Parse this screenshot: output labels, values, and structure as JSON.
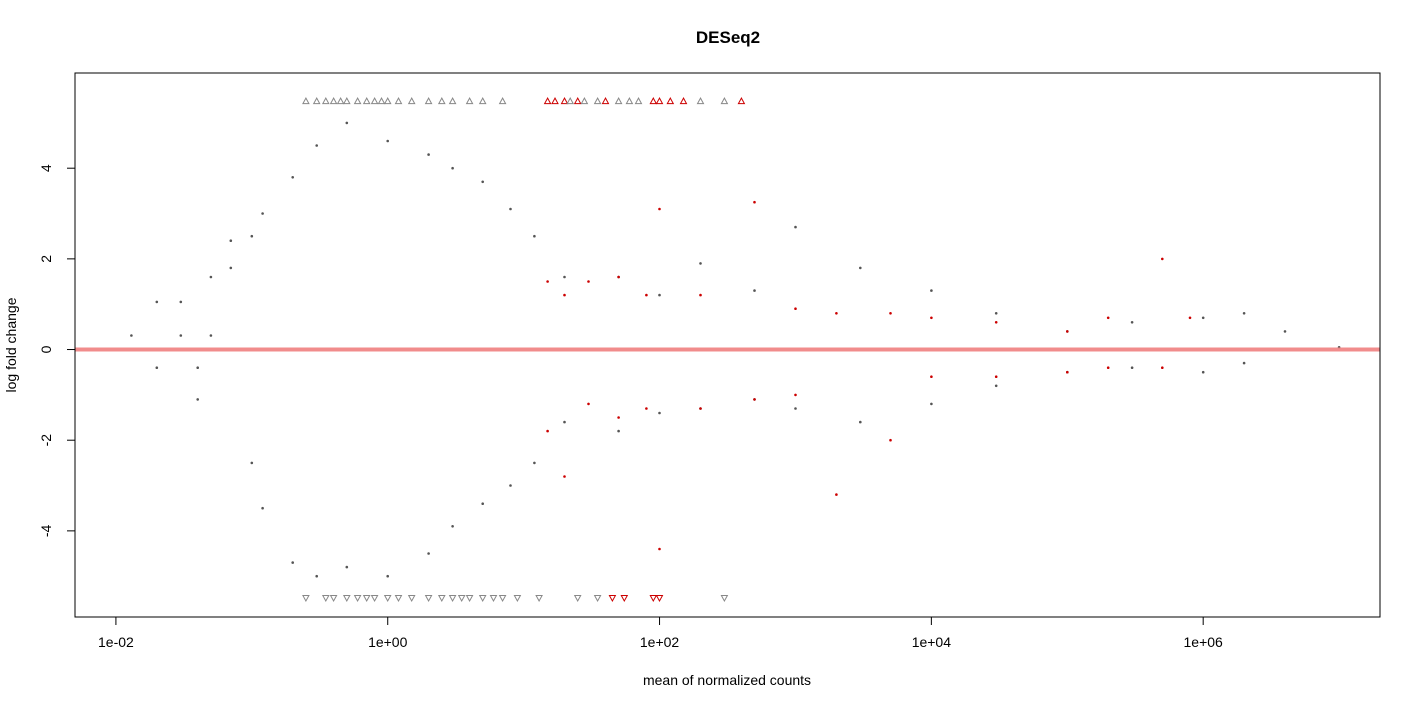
{
  "chart_data": {
    "type": "scatter",
    "title": "DESeq2",
    "xlabel": "mean of normalized counts",
    "ylabel": "log fold change",
    "x_scale": "log",
    "xlim": [
      0.005,
      20000000
    ],
    "ylim": [
      -5.9,
      6.1
    ],
    "x_ticks": [
      {
        "value": 0.01,
        "label": "1e-02"
      },
      {
        "value": 1,
        "label": "1e+00"
      },
      {
        "value": 100,
        "label": "1e+02"
      },
      {
        "value": 10000,
        "label": "1e+04"
      },
      {
        "value": 1000000,
        "label": "1e+06"
      }
    ],
    "y_ticks": [
      -4,
      -2,
      0,
      2,
      4
    ],
    "grid": false,
    "legend": "none",
    "reference_line": {
      "y": 0,
      "color": "#f08080"
    },
    "colors": {
      "not_significant": "#555555",
      "significant": "#cc0000",
      "out_of_range": "#888888"
    },
    "series": [
      {
        "significant": false,
        "points": [
          [
            0.013,
            0.31
          ],
          [
            0.02,
            -0.4
          ],
          [
            0.02,
            1.05
          ],
          [
            0.03,
            0.31
          ],
          [
            0.03,
            1.05
          ],
          [
            0.04,
            -0.4
          ],
          [
            0.04,
            -1.1
          ],
          [
            0.05,
            1.6
          ],
          [
            0.05,
            0.31
          ],
          [
            0.07,
            2.4
          ],
          [
            0.07,
            1.8
          ],
          [
            0.1,
            2.5
          ],
          [
            0.1,
            -2.5
          ],
          [
            0.12,
            3.0
          ],
          [
            0.12,
            -3.5
          ],
          [
            0.2,
            3.8
          ],
          [
            0.2,
            -4.7
          ],
          [
            0.3,
            4.5
          ],
          [
            0.3,
            -5.0
          ],
          [
            0.5,
            5.0
          ],
          [
            0.5,
            -4.8
          ],
          [
            1.0,
            4.6
          ],
          [
            1.0,
            -5.0
          ],
          [
            2,
            4.3
          ],
          [
            2,
            -4.5
          ],
          [
            3,
            4.0
          ],
          [
            3,
            -3.9
          ],
          [
            5,
            3.7
          ],
          [
            5,
            -3.4
          ],
          [
            8,
            3.1
          ],
          [
            8,
            -3.0
          ],
          [
            12,
            2.5
          ],
          [
            12,
            -2.5
          ],
          [
            20,
            1.6
          ],
          [
            20,
            -1.6
          ],
          [
            50,
            1.6
          ],
          [
            50,
            -1.8
          ],
          [
            100,
            1.2
          ],
          [
            100,
            -1.4
          ],
          [
            200,
            1.9
          ],
          [
            200,
            -1.3
          ],
          [
            500,
            1.3
          ],
          [
            500,
            -1.1
          ],
          [
            1000,
            2.7
          ],
          [
            1000,
            -1.3
          ],
          [
            3000,
            1.8
          ],
          [
            3000,
            -1.6
          ],
          [
            10000,
            1.3
          ],
          [
            10000,
            -1.2
          ],
          [
            30000,
            0.8
          ],
          [
            30000,
            -0.8
          ],
          [
            100000,
            0.4
          ],
          [
            100000,
            -0.5
          ],
          [
            300000,
            0.6
          ],
          [
            300000,
            -0.4
          ],
          [
            1000000,
            0.7
          ],
          [
            1000000,
            -0.5
          ],
          [
            2000000,
            0.8
          ],
          [
            2000000,
            -0.3
          ],
          [
            4000000,
            0.4
          ],
          [
            10000000,
            0.05
          ]
        ]
      },
      {
        "significant": true,
        "points": [
          [
            15,
            1.5
          ],
          [
            15,
            -1.8
          ],
          [
            20,
            1.2
          ],
          [
            20,
            -2.8
          ],
          [
            30,
            1.5
          ],
          [
            30,
            -1.2
          ],
          [
            50,
            1.6
          ],
          [
            50,
            -1.5
          ],
          [
            80,
            1.2
          ],
          [
            80,
            -1.3
          ],
          [
            100,
            3.1
          ],
          [
            100,
            -4.4
          ],
          [
            200,
            1.2
          ],
          [
            200,
            -1.3
          ],
          [
            500,
            3.25
          ],
          [
            500,
            -1.1
          ],
          [
            1000,
            0.9
          ],
          [
            1000,
            -1.0
          ],
          [
            2000,
            0.8
          ],
          [
            2000,
            -3.2
          ],
          [
            5000,
            0.8
          ],
          [
            5000,
            -2.0
          ],
          [
            10000,
            0.7
          ],
          [
            10000,
            -0.6
          ],
          [
            30000,
            0.6
          ],
          [
            30000,
            -0.6
          ],
          [
            100000,
            0.4
          ],
          [
            100000,
            -0.5
          ],
          [
            200000,
            0.7
          ],
          [
            200000,
            -0.4
          ],
          [
            500000,
            2.0
          ],
          [
            500000,
            -0.4
          ],
          [
            800000,
            0.7
          ]
        ]
      }
    ],
    "out_of_range": {
      "upper_x": [
        0.25,
        0.3,
        0.35,
        0.4,
        0.45,
        0.5,
        0.6,
        0.7,
        0.8,
        0.9,
        1.0,
        1.2,
        1.5,
        2,
        2.5,
        3,
        4,
        5,
        7,
        15,
        17,
        20,
        22,
        25,
        28,
        35,
        40,
        50,
        60,
        70,
        90,
        100,
        120,
        150,
        200,
        300,
        400
      ],
      "upper_sig": [
        false,
        false,
        false,
        false,
        false,
        false,
        false,
        false,
        false,
        false,
        false,
        false,
        false,
        false,
        false,
        false,
        false,
        false,
        false,
        true,
        true,
        true,
        false,
        true,
        false,
        false,
        true,
        false,
        false,
        false,
        true,
        true,
        true,
        true,
        false,
        false,
        true
      ],
      "lower_x": [
        0.25,
        0.35,
        0.4,
        0.5,
        0.6,
        0.7,
        0.8,
        1,
        1.2,
        1.5,
        2,
        2.5,
        3,
        3.5,
        4,
        5,
        6,
        7,
        9,
        13,
        25,
        35,
        45,
        55,
        90,
        100,
        300
      ],
      "lower_sig": [
        false,
        false,
        false,
        false,
        false,
        false,
        false,
        false,
        false,
        false,
        false,
        false,
        false,
        false,
        false,
        false,
        false,
        false,
        false,
        false,
        false,
        false,
        true,
        true,
        true,
        true,
        false
      ]
    }
  }
}
